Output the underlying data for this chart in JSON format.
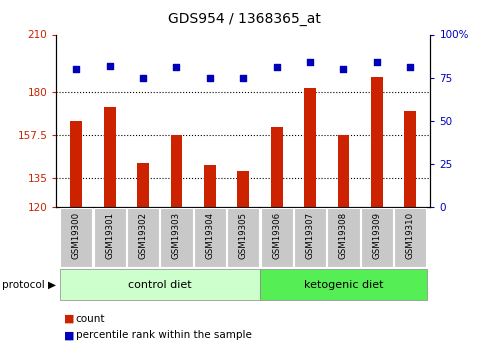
{
  "title": "GDS954 / 1368365_at",
  "samples": [
    "GSM19300",
    "GSM19301",
    "GSM19302",
    "GSM19303",
    "GSM19304",
    "GSM19305",
    "GSM19306",
    "GSM19307",
    "GSM19308",
    "GSM19309",
    "GSM19310"
  ],
  "red_values": [
    165,
    172,
    143,
    157.5,
    142,
    139,
    162,
    182,
    157.5,
    188,
    170
  ],
  "blue_values": [
    80,
    82,
    75,
    81,
    75,
    75,
    81,
    84,
    80,
    84,
    81
  ],
  "left_ylim": [
    120,
    210
  ],
  "right_ylim": [
    0,
    100
  ],
  "left_yticks": [
    120,
    135,
    157.5,
    180,
    210
  ],
  "right_yticks": [
    0,
    25,
    50,
    75,
    100
  ],
  "left_ytick_labels": [
    "120",
    "135",
    "157.5",
    "180",
    "210"
  ],
  "right_ytick_labels": [
    "0",
    "25",
    "50",
    "75",
    "100%"
  ],
  "left_color": "#cc2200",
  "right_color": "#0000bb",
  "bar_color": "#cc2200",
  "dot_color": "#0000bb",
  "control_label": "control diet",
  "ketogenic_label": "ketogenic diet",
  "protocol_label": "protocol",
  "legend_count": "count",
  "legend_percentile": "percentile rank within the sample",
  "bg_color": "#ffffff",
  "tick_bg_color": "#c8c8c8",
  "protocol_bg_light": "#ccffcc",
  "protocol_bg_dark": "#55ee55",
  "n_control": 6,
  "n_ketogenic": 5
}
